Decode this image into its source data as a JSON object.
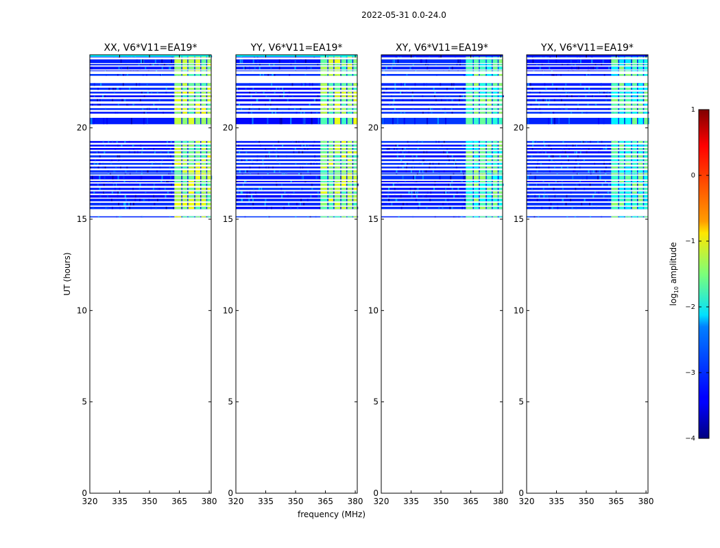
{
  "chart_data": {
    "type": "heatmap",
    "suptitle": "2022-05-31 0.0-24.0",
    "xlabel": "frequency (MHz)",
    "ylabel": "UT (hours)",
    "xlim": [
      320,
      381
    ],
    "ylim": [
      0,
      24
    ],
    "xticks": [
      320,
      335,
      350,
      365,
      380
    ],
    "yticks": [
      0,
      5,
      10,
      15,
      20
    ],
    "colorbar": {
      "label_main": "log",
      "label_sub": "10",
      "label_rest": " amplitude",
      "range": [
        -4,
        1
      ],
      "ticks": [
        -4,
        -3,
        -2,
        -1,
        0,
        1
      ],
      "colormap": "jet"
    },
    "panels": [
      {
        "title": "XX, V6*V11=EA19*",
        "strong_level": -0.9
      },
      {
        "title": "YY, V6*V11=EA19*",
        "strong_level": -0.95
      },
      {
        "title": "XY, V6*V11=EA19*",
        "strong_level": -1.3
      },
      {
        "title": "YX, V6*V11=EA19*",
        "strong_level": -1.4
      }
    ],
    "data_bands_ut": [
      [
        23.86,
        23.96
      ],
      [
        23.55,
        23.75
      ],
      [
        23.42,
        23.5
      ],
      [
        23.2,
        23.35
      ],
      [
        23.1,
        23.14
      ],
      [
        22.85,
        22.95
      ],
      [
        22.3,
        22.45
      ],
      [
        22.08,
        22.2
      ],
      [
        21.88,
        21.98
      ],
      [
        21.68,
        21.78
      ],
      [
        21.45,
        21.58
      ],
      [
        21.22,
        21.32
      ],
      [
        20.98,
        21.08
      ],
      [
        20.78,
        20.88
      ],
      [
        20.2,
        20.55
      ],
      [
        19.18,
        19.28
      ],
      [
        18.98,
        19.08
      ],
      [
        18.8,
        18.9
      ],
      [
        18.6,
        18.72
      ],
      [
        18.38,
        18.5
      ],
      [
        18.18,
        18.28
      ],
      [
        17.98,
        18.08
      ],
      [
        17.78,
        17.88
      ],
      [
        17.55,
        17.68
      ],
      [
        17.45,
        17.52
      ],
      [
        17.18,
        17.38
      ],
      [
        17.02,
        17.1
      ],
      [
        16.82,
        16.95
      ],
      [
        16.6,
        16.72
      ],
      [
        16.4,
        16.52
      ],
      [
        16.18,
        16.32
      ],
      [
        15.98,
        16.12
      ],
      [
        15.75,
        15.9
      ],
      [
        15.55,
        15.68
      ],
      [
        15.1,
        15.16
      ]
    ],
    "strong_channels_mhz": [
      [
        362.5,
        366
      ],
      [
        366.5,
        369
      ],
      [
        369.5,
        372.5
      ],
      [
        373,
        375.5
      ],
      [
        376,
        378.5
      ],
      [
        379,
        381
      ]
    ],
    "top_row_ut": [
      23.9,
      24.0
    ]
  }
}
